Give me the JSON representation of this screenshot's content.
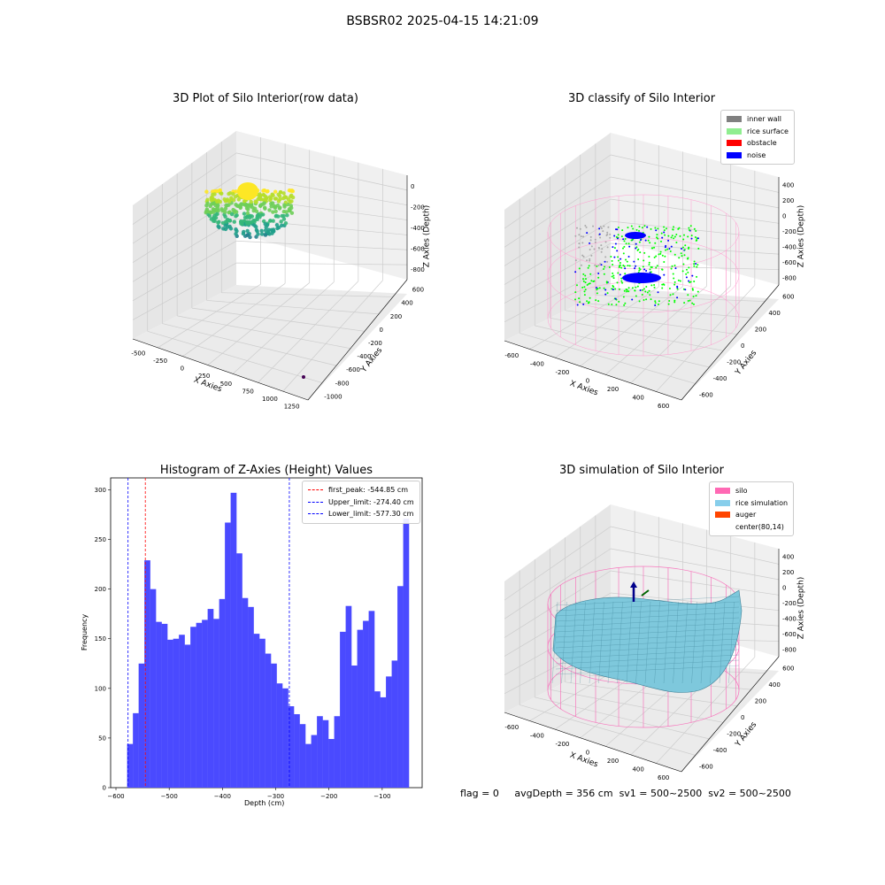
{
  "suptitle": "BSBSR02 2025-04-15 14:21:09",
  "panels": {
    "raw": {
      "title": "3D Plot of Silo Interior(row data)",
      "xlabel": "X Axies",
      "ylabel": "Y Axies",
      "zlabel": "Z Axies (Depth)",
      "xticks": [
        "-500",
        "-250",
        "0",
        "250",
        "500",
        "750",
        "1000",
        "1250"
      ],
      "yticks": [
        "-1000",
        "-800",
        "-600",
        "-400",
        "-200",
        "0",
        "200",
        "400",
        "600"
      ],
      "zticks": [
        "0",
        "-200",
        "-400",
        "-600",
        "-800"
      ]
    },
    "classify": {
      "title": "3D classify of Silo Interior",
      "xlabel": "X Axies",
      "ylabel": "Y Axies",
      "zlabel": "Z Axies (Depth)",
      "xticks": [
        "-600",
        "-400",
        "-200",
        "0",
        "200",
        "400",
        "600"
      ],
      "yticks": [
        "-600",
        "-400",
        "-200",
        "0",
        "200",
        "400",
        "600"
      ],
      "zticks": [
        "400",
        "200",
        "0",
        "-200",
        "-400",
        "-600",
        "-800"
      ],
      "legend": [
        {
          "label": "inner wall",
          "color": "#808080"
        },
        {
          "label": "rice surface",
          "color": "#90ee90"
        },
        {
          "label": "obstacle",
          "color": "#ff0000"
        },
        {
          "label": "noise",
          "color": "#0000ff"
        }
      ]
    },
    "simulation": {
      "title": "3D simulation of Silo Interior",
      "xlabel": "X Axies",
      "ylabel": "Y Axies",
      "zlabel": "Z Axies (Depth)",
      "xticks": [
        "-600",
        "-400",
        "-200",
        "0",
        "200",
        "400",
        "600"
      ],
      "yticks": [
        "-600",
        "-400",
        "-200",
        "0",
        "200",
        "400",
        "600"
      ],
      "zticks": [
        "400",
        "200",
        "0",
        "-200",
        "-400",
        "-600",
        "-800"
      ],
      "legend": [
        {
          "label": "silo",
          "color": "#ff69b4"
        },
        {
          "label": "rice simulation",
          "color": "#87ceeb"
        },
        {
          "label": "auger",
          "color": "#ff4500"
        },
        {
          "label": "center(80,14)",
          "color": ""
        }
      ]
    }
  },
  "chart_data": {
    "type": "bar",
    "title": "Histogram of Z-Axies (Height) Values",
    "xlabel": "Depth (cm)",
    "ylabel": "Frequency",
    "xlim": [
      -610,
      -25
    ],
    "ylim": [
      0,
      312
    ],
    "xticks": [
      -600,
      -500,
      -400,
      -300,
      -200,
      -100
    ],
    "yticks": [
      0,
      50,
      100,
      150,
      200,
      250,
      300
    ],
    "bin_start": -579,
    "bin_width": 10.8,
    "values": [
      44,
      75,
      125,
      229,
      200,
      167,
      165,
      149,
      150,
      154,
      144,
      162,
      166,
      169,
      180,
      170,
      190,
      267,
      297,
      236,
      191,
      182,
      155,
      150,
      135,
      125,
      105,
      100,
      82,
      74,
      64,
      44,
      53,
      72,
      68,
      49,
      72,
      157,
      183,
      123,
      159,
      168,
      178,
      97,
      91,
      112,
      128,
      203,
      271
    ],
    "color": "#4a4aff",
    "vlines": [
      {
        "x": -544.85,
        "color": "#ff0000",
        "label": "first_peak: -544.85 cm"
      },
      {
        "x": -274.4,
        "color": "#0000ff",
        "label": "Upper_limit: -274.40 cm"
      },
      {
        "x": -577.3,
        "color": "#0000ff",
        "label": "Lower_limit: -577.30 cm"
      }
    ]
  },
  "footer": {
    "flag": "flag = 0",
    "avg": "avgDepth = 356 cm",
    "sv1": "sv1 = 500~2500",
    "sv2": "sv2 = 500~2500"
  }
}
